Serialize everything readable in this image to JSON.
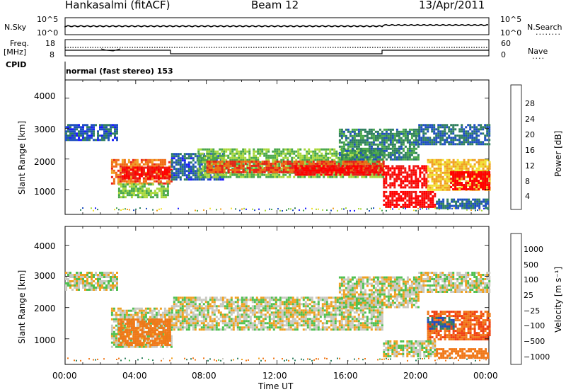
{
  "header": {
    "station": "Hankasalmi (fitACF)",
    "beam": "Beam 12",
    "date": "13/Apr/2011"
  },
  "top_panel": {
    "left_label": "N.Sky",
    "right_label": "N.Search",
    "right_dots": "........",
    "ticks_left": [
      "10^5",
      "10^0"
    ],
    "ticks_right": [
      "10^5",
      "10^0"
    ]
  },
  "freq_panel": {
    "label_line1": "Freq.",
    "label_line2": "[MHz]",
    "ticks_left": [
      "18",
      "8"
    ],
    "ticks_right": [
      "60",
      "0"
    ],
    "right_label": "Nave",
    "right_dots": "....",
    "cpid_label": "CPID",
    "cpid_text": "normal (fast stereo) 153"
  },
  "colors": {
    "scale": [
      "#1a1aff",
      "#1e4fbf",
      "#2f7f5f",
      "#4aa84a",
      "#a8d83a",
      "#f0e030",
      "#f0a020",
      "#f06a14",
      "#e82018",
      "#ff0000"
    ],
    "velocity": [
      "#1a1aff",
      "#1e4fbf",
      "#2f7f5f",
      "#4fc04f",
      "#c8c8c0",
      "#f0a020",
      "#f07818",
      "#f04010",
      "#ff0000"
    ],
    "ground": "#c8c8c0"
  },
  "chart_data": [
    {
      "type": "heatmap",
      "title": "",
      "xlabel": "Time UT",
      "ylabel": "Slant Range [km]",
      "xlim": [
        "00:00",
        "24:00"
      ],
      "ylim": [
        180,
        4600
      ],
      "x_ticks": [
        "00:00",
        "04:00",
        "08:00",
        "12:00",
        "16:00",
        "20:00",
        "00:00"
      ],
      "y_ticks": [
        "1000",
        "2000",
        "3000",
        "4000"
      ],
      "colorbar": {
        "label": "Power [dB]",
        "ticks": [
          "4",
          "8",
          "12",
          "16",
          "20",
          "24",
          "28"
        ],
        "range": [
          0,
          30
        ]
      },
      "regions": [
        {
          "t0": 0.0,
          "t1": 3.0,
          "r0": 2600,
          "r1": 3150,
          "level": 5
        },
        {
          "t0": 2.6,
          "t1": 6.0,
          "r0": 1200,
          "r1": 2000,
          "level": 22
        },
        {
          "t0": 3.2,
          "t1": 6.0,
          "r0": 1350,
          "r1": 1750,
          "level": 27
        },
        {
          "t0": 3.0,
          "t1": 5.8,
          "r0": 750,
          "r1": 1200,
          "level": 12
        },
        {
          "t0": 6.0,
          "t1": 9.0,
          "r0": 1300,
          "r1": 2200,
          "level": 5
        },
        {
          "t0": 7.5,
          "t1": 18.0,
          "r0": 1400,
          "r1": 2350,
          "level": 12
        },
        {
          "t0": 8.0,
          "t1": 18.0,
          "r0": 1550,
          "r1": 1950,
          "level": 24
        },
        {
          "t0": 13.0,
          "t1": 18.0,
          "r0": 1500,
          "r1": 1800,
          "level": 28
        },
        {
          "t0": 15.5,
          "t1": 20.0,
          "r0": 2000,
          "r1": 3000,
          "level": 8
        },
        {
          "t0": 18.0,
          "t1": 20.5,
          "r0": 1100,
          "r1": 1800,
          "level": 28
        },
        {
          "t0": 18.0,
          "t1": 21.0,
          "r0": 450,
          "r1": 950,
          "level": 29
        },
        {
          "t0": 20.5,
          "t1": 24.0,
          "r0": 1000,
          "r1": 2000,
          "level": 18
        },
        {
          "t0": 21.8,
          "t1": 24.0,
          "r0": 1000,
          "r1": 1600,
          "level": 29
        },
        {
          "t0": 20.0,
          "t1": 24.0,
          "r0": 2500,
          "r1": 3150,
          "level": 6
        },
        {
          "t0": 21.0,
          "t1": 24.0,
          "r0": 400,
          "r1": 700,
          "level": 6
        }
      ]
    },
    {
      "type": "heatmap",
      "title": "",
      "xlabel": "Time UT",
      "ylabel": "Slant Range [km]",
      "xlim": [
        "00:00",
        "24:00"
      ],
      "ylim": [
        180,
        4600
      ],
      "x_ticks": [
        "00:00",
        "04:00",
        "08:00",
        "12:00",
        "16:00",
        "20:00",
        "00:00"
      ],
      "y_ticks": [
        "1000",
        "2000",
        "3000",
        "4000"
      ],
      "colorbar": {
        "label": "Velocity [m s⁻¹]",
        "ticks": [
          "1000",
          "500",
          "100",
          "25",
          "−25",
          "−100",
          "−500",
          "−1000"
        ]
      },
      "regions": [
        {
          "t0": 0.0,
          "t1": 3.0,
          "r0": 2600,
          "r1": 3150,
          "velocity": 0
        },
        {
          "t0": 2.6,
          "t1": 6.0,
          "r0": 750,
          "r1": 2000,
          "velocity": 0
        },
        {
          "t0": 3.0,
          "t1": 6.0,
          "r0": 800,
          "r1": 1650,
          "velocity": -200
        },
        {
          "t0": 6.0,
          "t1": 18.0,
          "r0": 1300,
          "r1": 2350,
          "velocity": 0
        },
        {
          "t0": 15.5,
          "t1": 20.0,
          "r0": 2000,
          "r1": 3000,
          "velocity": 0
        },
        {
          "t0": 18.0,
          "t1": 21.0,
          "r0": 450,
          "r1": 950,
          "velocity": 0
        },
        {
          "t0": 20.5,
          "t1": 24.0,
          "r0": 1000,
          "r1": 1900,
          "velocity": -300
        },
        {
          "t0": 20.5,
          "t1": 22.0,
          "r0": 1300,
          "r1": 1700,
          "velocity": 300
        },
        {
          "t0": 20.0,
          "t1": 24.0,
          "r0": 2500,
          "r1": 3150,
          "velocity": 0
        },
        {
          "t0": 21.0,
          "t1": 24.0,
          "r0": 400,
          "r1": 700,
          "velocity": -150
        }
      ]
    }
  ]
}
